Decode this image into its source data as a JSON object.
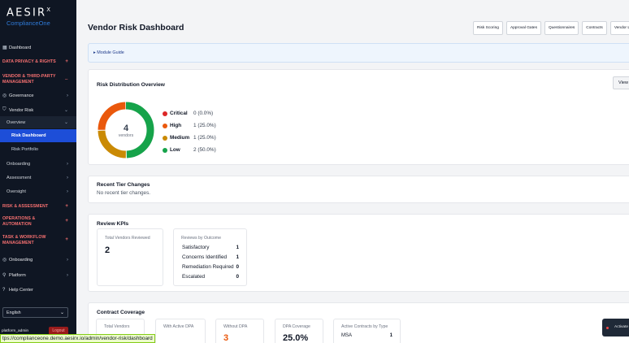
{
  "brand": {
    "name": "AESIR",
    "mark": "X",
    "sub": "ComplianceOne"
  },
  "sidebar": {
    "dashboard": "Dashboard",
    "privacy": "DATA PRIVACY & RIGHTS",
    "vendor_section": "VENDOR & THIRD-PARTY MANAGEMENT",
    "governance": "Governance",
    "vendor_risk": "Vendor Risk",
    "overview": "Overview",
    "risk_dashboard": "Risk Dashboard",
    "risk_portfolio": "Risk Portfolio",
    "onboarding_sub": "Onboarding",
    "assessment": "Assessment",
    "oversight": "Oversight",
    "risk_assessment": "RISK & ASSESSMENT",
    "operations": "OPERATIONS & AUTOMATION",
    "task_workflow": "TASK & WORKFLOW MANAGEMENT",
    "onboarding": "Onboarding",
    "platform": "Platform",
    "help": "Help Center",
    "language": "English",
    "user": "platform_admin",
    "logout": "Logout"
  },
  "header": {
    "title": "Vendor Risk Dashboard",
    "buttons": [
      "Risk Scoring",
      "Approval Gates",
      "Questionnaires",
      "Contracts",
      "Vendor L"
    ]
  },
  "guide": {
    "label": "Module Guide"
  },
  "distribution": {
    "title": "Risk Distribution Overview",
    "view_button": "View as ta",
    "total": "4",
    "total_label": "vendors",
    "items": [
      {
        "name": "Critical",
        "value": "0 (0.0%)",
        "count": 0,
        "color": "#dc2626"
      },
      {
        "name": "High",
        "value": "1 (25.0%)",
        "count": 1,
        "color": "#ea580c"
      },
      {
        "name": "Medium",
        "value": "1 (25.0%)",
        "count": 1,
        "color": "#ca8a04"
      },
      {
        "name": "Low",
        "value": "2 (50.0%)",
        "count": 2,
        "color": "#16a34a"
      }
    ]
  },
  "tier_changes": {
    "title": "Recent Tier Changes",
    "empty": "No recent tier changes."
  },
  "kpis": {
    "title": "Review KPIs",
    "total_label": "Total Vendors Reviewed",
    "total_value": "2",
    "outcome_label": "Reviews by Outcome",
    "outcomes": [
      {
        "name": "Satisfactory",
        "value": "1"
      },
      {
        "name": "Concerns Identified",
        "value": "1"
      },
      {
        "name": "Remediation Required",
        "value": "0"
      },
      {
        "name": "Escalated",
        "value": "0"
      }
    ]
  },
  "coverage": {
    "title": "Contract Coverage",
    "total_vendors": "Total Vendors",
    "with_dpa": "With Active DPA",
    "without_dpa": "Without DPA",
    "without_dpa_value": "3",
    "dpa_coverage": "DPA Coverage",
    "dpa_coverage_value": "25.0%",
    "by_type": "Active Contracts by Type",
    "type_name": "MSA",
    "type_value": "1"
  },
  "status_url": "tps://complianceone.demo.aesirx.io/admin/vendor-risk/dashboard",
  "toast": "Activate",
  "colors": {
    "sidebar": "#0f1623",
    "active": "#1d4ed8",
    "section": "#f87171",
    "accent_orange": "#ea580c"
  }
}
